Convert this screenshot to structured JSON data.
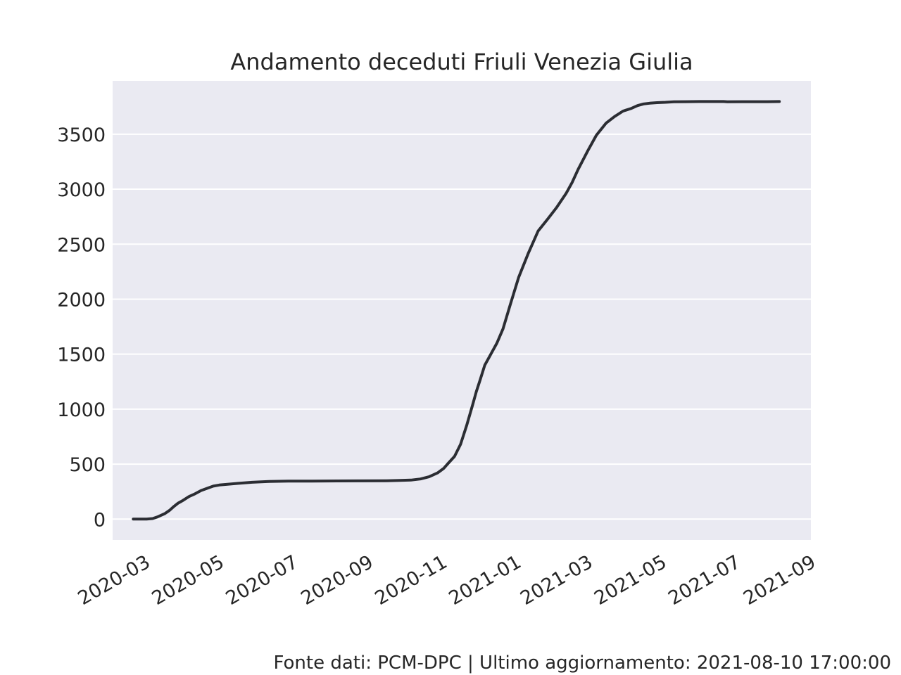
{
  "chart_data": {
    "type": "line",
    "title": "Andamento deceduti Friuli Venezia Giulia",
    "xlabel": "",
    "ylabel": "",
    "x_tick_labels": [
      "2020-03",
      "2020-05",
      "2020-07",
      "2020-09",
      "2020-11",
      "2021-01",
      "2021-03",
      "2021-05",
      "2021-07",
      "2021-09"
    ],
    "y_ticks": [
      0,
      500,
      1000,
      1500,
      2000,
      2500,
      3000,
      3500
    ],
    "xlim": [
      "2020-02-07",
      "2021-09-05"
    ],
    "ylim": [
      -190,
      3985
    ],
    "grid": "horizontal",
    "style": "seaborn-darkgrid",
    "colors": {
      "background": "#eaeaf2",
      "grid": "#ffffff",
      "line": "#2b2d33",
      "text": "#262626"
    },
    "series": [
      {
        "x": [
          "2020-02-24",
          "2020-03-01",
          "2020-03-06",
          "2020-03-11",
          "2020-03-15",
          "2020-03-18",
          "2020-03-21",
          "2020-03-25",
          "2020-03-28",
          "2020-04-01",
          "2020-04-05",
          "2020-04-10",
          "2020-04-15",
          "2020-04-20",
          "2020-04-25",
          "2020-04-30",
          "2020-05-05",
          "2020-05-10",
          "2020-05-20",
          "2020-06-01",
          "2020-06-15",
          "2020-07-01",
          "2020-07-20",
          "2020-08-10",
          "2020-08-30",
          "2020-09-20",
          "2020-10-01",
          "2020-10-10",
          "2020-10-18",
          "2020-10-25",
          "2020-11-01",
          "2020-11-06",
          "2020-11-10",
          "2020-11-15",
          "2020-11-20",
          "2020-11-25",
          "2020-11-30",
          "2020-12-03",
          "2020-12-06",
          "2020-12-10",
          "2020-12-15",
          "2020-12-20",
          "2020-12-25",
          "2020-12-31",
          "2021-01-07",
          "2021-01-15",
          "2021-01-23",
          "2021-01-31",
          "2021-02-07",
          "2021-02-15",
          "2021-02-20",
          "2021-02-25",
          "2021-03-05",
          "2021-03-12",
          "2021-03-20",
          "2021-03-27",
          "2021-04-03",
          "2021-04-10",
          "2021-04-15",
          "2021-04-20",
          "2021-04-25",
          "2021-05-01",
          "2021-05-08",
          "2021-05-15",
          "2021-05-25",
          "2021-06-05",
          "2021-06-15",
          "2021-06-25",
          "2021-06-28",
          "2021-07-10",
          "2021-07-20",
          "2021-07-31",
          "2021-08-10"
        ],
        "values": [
          0,
          0,
          0,
          5,
          20,
          35,
          50,
          80,
          110,
          145,
          170,
          205,
          230,
          260,
          280,
          300,
          310,
          315,
          325,
          335,
          342,
          345,
          345,
          347,
          348,
          349,
          352,
          355,
          365,
          385,
          420,
          460,
          510,
          570,
          680,
          850,
          1040,
          1160,
          1260,
          1400,
          1500,
          1600,
          1730,
          1950,
          2200,
          2420,
          2620,
          2730,
          2830,
          2960,
          3060,
          3180,
          3350,
          3490,
          3600,
          3660,
          3710,
          3735,
          3760,
          3775,
          3782,
          3787,
          3790,
          3795,
          3796,
          3797,
          3797,
          3797,
          3795,
          3796,
          3796,
          3796,
          3797
        ]
      }
    ]
  },
  "footer": "Fonte dati: PCM-DPC | Ultimo aggiornamento: 2021-08-10 17:00:00"
}
